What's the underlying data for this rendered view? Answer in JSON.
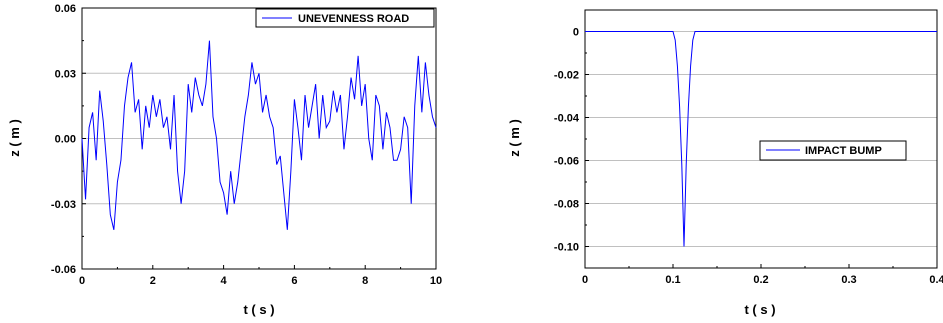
{
  "chart_data": [
    {
      "type": "line",
      "title": "",
      "xlabel": "t ( s )",
      "ylabel": "z ( m )",
      "xlim": [
        0,
        10
      ],
      "ylim": [
        -0.06,
        0.06
      ],
      "x_ticks": [
        0,
        2,
        4,
        6,
        8,
        10
      ],
      "x_tick_labels": [
        "0",
        "2",
        "4",
        "6",
        "8",
        "10"
      ],
      "y_ticks": [
        -0.06,
        -0.03,
        0.0,
        0.03,
        0.06
      ],
      "y_tick_labels": [
        "-0.06",
        "-0.03",
        "0.00",
        "0.03",
        "0.06"
      ],
      "grid": "horizontal",
      "legend_position": "top-right",
      "color": "#0000ff",
      "series": [
        {
          "name": "UNEVENNESS ROAD",
          "x": [
            0,
            0.1,
            0.2,
            0.3,
            0.4,
            0.5,
            0.6,
            0.7,
            0.8,
            0.9,
            1.0,
            1.1,
            1.2,
            1.3,
            1.4,
            1.5,
            1.6,
            1.7,
            1.8,
            1.9,
            2.0,
            2.1,
            2.2,
            2.3,
            2.4,
            2.5,
            2.6,
            2.7,
            2.8,
            2.9,
            3.0,
            3.1,
            3.2,
            3.3,
            3.4,
            3.5,
            3.6,
            3.7,
            3.8,
            3.9,
            4.0,
            4.1,
            4.2,
            4.3,
            4.4,
            4.5,
            4.6,
            4.7,
            4.8,
            4.9,
            5.0,
            5.1,
            5.2,
            5.3,
            5.4,
            5.5,
            5.6,
            5.7,
            5.8,
            5.9,
            6.0,
            6.1,
            6.2,
            6.3,
            6.4,
            6.5,
            6.6,
            6.7,
            6.8,
            6.9,
            7.0,
            7.1,
            7.2,
            7.3,
            7.4,
            7.5,
            7.6,
            7.7,
            7.8,
            7.9,
            8.0,
            8.1,
            8.2,
            8.3,
            8.4,
            8.5,
            8.6,
            8.7,
            8.8,
            8.9,
            9.0,
            9.1,
            9.2,
            9.3,
            9.4,
            9.5,
            9.6,
            9.7,
            9.8,
            9.9,
            10.0
          ],
          "y": [
            0.0,
            -0.028,
            0.005,
            0.012,
            -0.01,
            0.022,
            0.008,
            -0.012,
            -0.035,
            -0.042,
            -0.02,
            -0.01,
            0.015,
            0.028,
            0.035,
            0.012,
            0.018,
            -0.005,
            0.015,
            0.005,
            0.02,
            0.01,
            0.018,
            0.005,
            0.01,
            -0.005,
            0.02,
            -0.015,
            -0.03,
            -0.015,
            0.025,
            0.012,
            0.028,
            0.02,
            0.015,
            0.025,
            0.045,
            0.01,
            0.0,
            -0.02,
            -0.025,
            -0.035,
            -0.015,
            -0.03,
            -0.02,
            -0.005,
            0.01,
            0.02,
            0.035,
            0.025,
            0.03,
            0.012,
            0.02,
            0.01,
            0.005,
            -0.012,
            -0.008,
            -0.025,
            -0.042,
            -0.015,
            0.018,
            0.005,
            -0.01,
            0.02,
            0.005,
            0.015,
            0.025,
            0.0,
            0.02,
            0.005,
            0.008,
            0.022,
            0.012,
            0.02,
            -0.005,
            0.01,
            0.028,
            0.018,
            0.038,
            0.015,
            0.025,
            0.0,
            -0.01,
            0.02,
            0.015,
            -0.005,
            0.012,
            0.005,
            -0.01,
            -0.01,
            -0.005,
            0.01,
            0.005,
            -0.03,
            0.015,
            0.038,
            0.012,
            0.035,
            0.02,
            0.01,
            0.005
          ]
        }
      ]
    },
    {
      "type": "line",
      "title": "",
      "xlabel": "t ( s )",
      "ylabel": "z ( m )",
      "xlim": [
        0,
        0.4
      ],
      "ylim": [
        -0.11,
        0.01
      ],
      "x_ticks": [
        0,
        0.1,
        0.2,
        0.3,
        0.4
      ],
      "x_tick_labels": [
        "0",
        "0.1",
        "0.2",
        "0.3",
        "0.4"
      ],
      "y_ticks": [
        0,
        -0.02,
        -0.04,
        -0.06,
        -0.08,
        -0.1
      ],
      "y_tick_labels": [
        "0",
        "-0.02",
        "-0.04",
        "-0.06",
        "-0.08",
        "-0.10"
      ],
      "grid": "horizontal",
      "legend_position": "center-right",
      "color": "#0000ff",
      "series": [
        {
          "name": "IMPACT BUMP",
          "x": [
            0,
            0.1,
            0.1025,
            0.105,
            0.1075,
            0.11,
            0.1125,
            0.115,
            0.1175,
            0.12,
            0.1225,
            0.125,
            0.2,
            0.3,
            0.4
          ],
          "y": [
            0,
            0,
            -0.004,
            -0.016,
            -0.035,
            -0.062,
            -0.1,
            -0.062,
            -0.035,
            -0.016,
            -0.004,
            0,
            0,
            0,
            0
          ]
        }
      ]
    }
  ]
}
